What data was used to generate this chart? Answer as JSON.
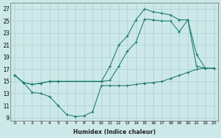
{
  "bg_color": "#cce8e8",
  "line_color": "#1a7a6e",
  "grid_color": "#aacfcf",
  "xlabel": "Humidex (Indice chaleur)",
  "ylabel_ticks": [
    9,
    11,
    13,
    15,
    17,
    19,
    21,
    23,
    25,
    27
  ],
  "xlabel_ticks": [
    0,
    1,
    2,
    3,
    4,
    5,
    6,
    7,
    8,
    9,
    10,
    11,
    12,
    13,
    14,
    15,
    16,
    17,
    18,
    19,
    20,
    21,
    22,
    23
  ],
  "ylim": [
    8.5,
    28
  ],
  "xlim": [
    -0.5,
    23.5
  ],
  "series": [
    {
      "x": [
        0,
        1,
        2,
        3,
        4,
        5,
        6,
        7,
        8,
        9,
        10,
        11,
        12,
        13,
        14,
        15,
        16,
        17,
        18,
        19,
        20,
        21,
        22,
        23
      ],
      "y": [
        16,
        14.8,
        13.2,
        13.0,
        12.5,
        11.0,
        9.5,
        9.2,
        9.3,
        10.0,
        14.3,
        14.3,
        14.3,
        14.3,
        14.5,
        14.7,
        14.8,
        15.0,
        15.5,
        16.0,
        16.5,
        17.0,
        17.2,
        17.2
      ]
    },
    {
      "x": [
        0,
        1,
        2,
        3,
        4,
        5,
        10,
        11,
        12,
        13,
        14,
        15,
        16,
        17,
        18,
        19,
        20,
        21,
        22,
        23
      ],
      "y": [
        16,
        14.8,
        14.5,
        14.7,
        15.0,
        15.0,
        15.0,
        17.5,
        21.0,
        22.5,
        25.2,
        27.0,
        26.5,
        26.3,
        26.0,
        25.2,
        25.2,
        17.5,
        17.2,
        17.2
      ]
    },
    {
      "x": [
        0,
        1,
        2,
        3,
        4,
        5,
        10,
        11,
        12,
        13,
        14,
        15,
        16,
        17,
        18,
        19,
        20,
        21,
        22,
        23
      ],
      "y": [
        16,
        14.8,
        14.5,
        14.7,
        15.0,
        15.0,
        15.0,
        15.2,
        17.5,
        20.0,
        21.5,
        25.3,
        25.2,
        25.0,
        25.0,
        23.2,
        25.2,
        19.5,
        17.2,
        17.2
      ]
    }
  ]
}
